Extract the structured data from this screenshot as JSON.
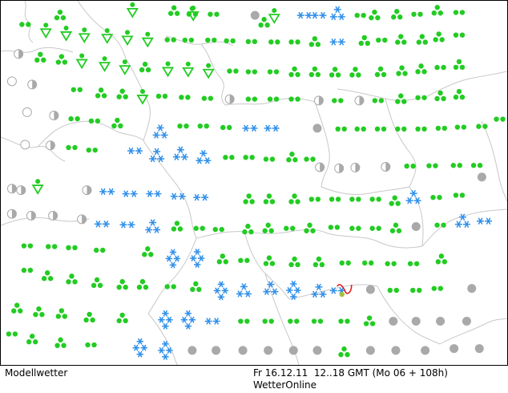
{
  "map": {
    "type": "weather-symbol-grid",
    "region": "Central Europe",
    "legend_symbols": {
      "rain": {
        "color": "#22cc22",
        "shape": "dots"
      },
      "snow": {
        "color": "#2f8fea",
        "shape": "asterisks"
      },
      "fog": {
        "color": "#a9a9a9",
        "shape": "grey-disc"
      },
      "clear": {
        "color": "#a9a9a9",
        "shape": "open-circle"
      },
      "partly": {
        "color": "#a9a9a9",
        "shape": "half-disc"
      },
      "thunder": {
        "color": "#e02020",
        "shape": "wavy"
      }
    },
    "symbols": [
      [
        "dots2",
        0.048,
        0.065
      ],
      [
        "shower",
        0.089,
        0.08
      ],
      [
        "shower",
        0.129,
        0.088
      ],
      [
        "shower",
        0.165,
        0.093
      ],
      [
        "dots3",
        0.117,
        0.04
      ],
      [
        "shower",
        0.26,
        0.024
      ],
      [
        "dots3",
        0.342,
        0.028
      ],
      [
        "dots3",
        0.378,
        0.03
      ],
      [
        "shower",
        0.38,
        0.033
      ],
      [
        "dots2",
        0.42,
        0.037
      ],
      [
        "fog",
        0.502,
        0.04
      ],
      [
        "shower",
        0.54,
        0.04
      ],
      [
        "dots3",
        0.52,
        0.06
      ],
      [
        "snow2",
        0.6,
        0.04
      ],
      [
        "snow2",
        0.628,
        0.04
      ],
      [
        "snow3",
        0.665,
        0.035
      ],
      [
        "dots2",
        0.71,
        0.04
      ],
      [
        "dots3",
        0.738,
        0.04
      ],
      [
        "dots3",
        0.782,
        0.038
      ],
      [
        "dots2",
        0.822,
        0.037
      ],
      [
        "dots3",
        0.862,
        0.027
      ],
      [
        "dots2",
        0.905,
        0.032
      ],
      [
        "shower",
        0.21,
        0.095
      ],
      [
        "shower",
        0.25,
        0.1
      ],
      [
        "shower",
        0.29,
        0.105
      ],
      [
        "dots2",
        0.335,
        0.107
      ],
      [
        "dots2",
        0.37,
        0.108
      ],
      [
        "dots2",
        0.415,
        0.108
      ],
      [
        "dots2",
        0.452,
        0.11
      ],
      [
        "dots2",
        0.495,
        0.112
      ],
      [
        "dots2",
        0.54,
        0.113
      ],
      [
        "dots2",
        0.58,
        0.113
      ],
      [
        "dots3",
        0.62,
        0.113
      ],
      [
        "snow2",
        0.665,
        0.113
      ],
      [
        "dots3",
        0.718,
        0.11
      ],
      [
        "dots2",
        0.752,
        0.108
      ],
      [
        "dots3",
        0.79,
        0.107
      ],
      [
        "dots3",
        0.832,
        0.107
      ],
      [
        "dots3",
        0.865,
        0.1
      ],
      [
        "dots2",
        0.905,
        0.094
      ],
      [
        "partly",
        0.035,
        0.146
      ],
      [
        "dots3",
        0.078,
        0.156
      ],
      [
        "dots3",
        0.12,
        0.162
      ],
      [
        "shower",
        0.16,
        0.164
      ],
      [
        "shower",
        0.205,
        0.172
      ],
      [
        "shower",
        0.245,
        0.181
      ],
      [
        "dots3",
        0.285,
        0.183
      ],
      [
        "shower",
        0.33,
        0.186
      ],
      [
        "shower",
        0.37,
        0.187
      ],
      [
        "shower",
        0.41,
        0.191
      ],
      [
        "dots2",
        0.458,
        0.193
      ],
      [
        "dots2",
        0.495,
        0.195
      ],
      [
        "dots2",
        0.538,
        0.195
      ],
      [
        "dots3",
        0.58,
        0.196
      ],
      [
        "dots3",
        0.62,
        0.196
      ],
      [
        "dots3",
        0.66,
        0.197
      ],
      [
        "dots3",
        0.7,
        0.197
      ],
      [
        "dots3",
        0.75,
        0.196
      ],
      [
        "dots3",
        0.792,
        0.193
      ],
      [
        "dots3",
        0.83,
        0.188
      ],
      [
        "dots2",
        0.868,
        0.183
      ],
      [
        "dots3",
        0.905,
        0.176
      ],
      [
        "clear",
        0.022,
        0.221
      ],
      [
        "partly",
        0.062,
        0.23
      ],
      [
        "dots2",
        0.15,
        0.244
      ],
      [
        "dots3",
        0.198,
        0.254
      ],
      [
        "dots3",
        0.24,
        0.257
      ],
      [
        "shower",
        0.28,
        0.262
      ],
      [
        "dots2",
        0.318,
        0.262
      ],
      [
        "dots2",
        0.363,
        0.265
      ],
      [
        "dots2",
        0.408,
        0.268
      ],
      [
        "partly",
        0.452,
        0.27
      ],
      [
        "dots2",
        0.495,
        0.27
      ],
      [
        "dots2",
        0.538,
        0.27
      ],
      [
        "dots2",
        0.58,
        0.27
      ],
      [
        "partly",
        0.628,
        0.274
      ],
      [
        "dots2",
        0.665,
        0.274
      ],
      [
        "partly",
        0.708,
        0.274
      ],
      [
        "dots2",
        0.745,
        0.274
      ],
      [
        "dots3",
        0.79,
        0.27
      ],
      [
        "dots2",
        0.83,
        0.266
      ],
      [
        "dots3",
        0.868,
        0.262
      ],
      [
        "dots3",
        0.905,
        0.258
      ],
      [
        "clear",
        0.052,
        0.306
      ],
      [
        "partly",
        0.105,
        0.315
      ],
      [
        "dots2",
        0.145,
        0.324
      ],
      [
        "dots2",
        0.185,
        0.33
      ],
      [
        "dots3",
        0.23,
        0.337
      ],
      [
        "snow3",
        0.315,
        0.36
      ],
      [
        "dots2",
        0.36,
        0.344
      ],
      [
        "dots2",
        0.4,
        0.344
      ],
      [
        "dots2",
        0.445,
        0.348
      ],
      [
        "snow2",
        0.492,
        0.35
      ],
      [
        "snow2",
        0.535,
        0.35
      ],
      [
        "fog",
        0.625,
        0.35
      ],
      [
        "dots2",
        0.672,
        0.352
      ],
      [
        "dots2",
        0.71,
        0.352
      ],
      [
        "dots2",
        0.75,
        0.352
      ],
      [
        "dots2",
        0.79,
        0.352
      ],
      [
        "dots2",
        0.83,
        0.352
      ],
      [
        "dots2",
        0.87,
        0.35
      ],
      [
        "dots2",
        0.908,
        0.347
      ],
      [
        "dots2",
        0.95,
        0.345
      ],
      [
        "dots2",
        0.985,
        0.325
      ],
      [
        "clear",
        0.048,
        0.395
      ],
      [
        "partly",
        0.098,
        0.397
      ],
      [
        "dots2",
        0.14,
        0.403
      ],
      [
        "dots2",
        0.18,
        0.41
      ],
      [
        "snow2",
        0.265,
        0.412
      ],
      [
        "snow3",
        0.308,
        0.425
      ],
      [
        "snow3",
        0.355,
        0.42
      ],
      [
        "snow3",
        0.4,
        0.43
      ],
      [
        "dots2",
        0.45,
        0.43
      ],
      [
        "dots2",
        0.49,
        0.43
      ],
      [
        "dots2",
        0.53,
        0.435
      ],
      [
        "dots3",
        0.575,
        0.43
      ],
      [
        "dots2",
        0.61,
        0.435
      ],
      [
        "partly",
        0.63,
        0.457
      ],
      [
        "partly",
        0.668,
        0.46
      ],
      [
        "partly",
        0.7,
        0.458
      ],
      [
        "partly",
        0.76,
        0.456
      ],
      [
        "dots2",
        0.808,
        0.454
      ],
      [
        "dots2",
        0.852,
        0.453
      ],
      [
        "dots2",
        0.9,
        0.452
      ],
      [
        "dots2",
        0.94,
        0.452
      ],
      [
        "shower",
        0.073,
        0.509
      ],
      [
        "partly",
        0.022,
        0.516
      ],
      [
        "partly",
        0.04,
        0.52
      ],
      [
        "partly",
        0.17,
        0.52
      ],
      [
        "snow2",
        0.21,
        0.524
      ],
      [
        "snow2",
        0.255,
        0.53
      ],
      [
        "snow2",
        0.302,
        0.53
      ],
      [
        "snow2",
        0.35,
        0.537
      ],
      [
        "snow2",
        0.395,
        0.54
      ],
      [
        "dots3",
        0.49,
        0.545
      ],
      [
        "dots3",
        0.53,
        0.545
      ],
      [
        "dots3",
        0.58,
        0.545
      ],
      [
        "dots2",
        0.62,
        0.545
      ],
      [
        "dots2",
        0.66,
        0.545
      ],
      [
        "dots2",
        0.7,
        0.545
      ],
      [
        "dots2",
        0.74,
        0.545
      ],
      [
        "dots3",
        0.778,
        0.55
      ],
      [
        "snow3",
        0.815,
        0.54
      ],
      [
        "dots2",
        0.86,
        0.54
      ],
      [
        "dots2",
        0.905,
        0.534
      ],
      [
        "fog",
        0.95,
        0.484
      ],
      [
        "partly",
        0.022,
        0.585
      ],
      [
        "partly",
        0.06,
        0.59
      ],
      [
        "partly",
        0.103,
        0.59
      ],
      [
        "partly",
        0.16,
        0.6
      ],
      [
        "snow2",
        0.2,
        0.613
      ],
      [
        "snow2",
        0.25,
        0.615
      ],
      [
        "snow3",
        0.3,
        0.62
      ],
      [
        "dots3",
        0.348,
        0.62
      ],
      [
        "dots2",
        0.392,
        0.625
      ],
      [
        "dots2",
        0.43,
        0.628
      ],
      [
        "dots3",
        0.488,
        0.628
      ],
      [
        "dots3",
        0.528,
        0.625
      ],
      [
        "dots2",
        0.57,
        0.625
      ],
      [
        "dots3",
        0.61,
        0.625
      ],
      [
        "dots2",
        0.658,
        0.622
      ],
      [
        "dots2",
        0.7,
        0.625
      ],
      [
        "dots2",
        0.74,
        0.625
      ],
      [
        "dots3",
        0.78,
        0.625
      ],
      [
        "fog",
        0.82,
        0.62
      ],
      [
        "dots2",
        0.868,
        0.616
      ],
      [
        "snow3",
        0.912,
        0.605
      ],
      [
        "snow2",
        0.955,
        0.605
      ],
      [
        "dots2",
        0.052,
        0.673
      ],
      [
        "dots2",
        0.1,
        0.675
      ],
      [
        "dots2",
        0.14,
        0.678
      ],
      [
        "dots2",
        0.195,
        0.685
      ],
      [
        "dots3",
        0.29,
        0.69
      ],
      [
        "snow4",
        0.34,
        0.708
      ],
      [
        "snow4",
        0.388,
        0.707
      ],
      [
        "dots3",
        0.438,
        0.71
      ],
      [
        "dots2",
        0.48,
        0.713
      ],
      [
        "dots3",
        0.53,
        0.715
      ],
      [
        "dots3",
        0.58,
        0.718
      ],
      [
        "dots3",
        0.628,
        0.718
      ],
      [
        "dots2",
        0.68,
        0.72
      ],
      [
        "dots2",
        0.725,
        0.72
      ],
      [
        "dots2",
        0.77,
        0.722
      ],
      [
        "dots2",
        0.815,
        0.722
      ],
      [
        "dots3",
        0.87,
        0.71
      ],
      [
        "dots2",
        0.052,
        0.74
      ],
      [
        "dots3",
        0.092,
        0.756
      ],
      [
        "dots3",
        0.14,
        0.765
      ],
      [
        "dots3",
        0.19,
        0.775
      ],
      [
        "dots3",
        0.24,
        0.78
      ],
      [
        "dots3",
        0.28,
        0.78
      ],
      [
        "dots2",
        0.335,
        0.785
      ],
      [
        "dots3",
        0.385,
        0.786
      ],
      [
        "snow4",
        0.435,
        0.796
      ],
      [
        "snow3",
        0.48,
        0.796
      ],
      [
        "snow3",
        0.533,
        0.79
      ],
      [
        "snow4",
        0.578,
        0.795
      ],
      [
        "snow3",
        0.628,
        0.797
      ],
      [
        "snow2",
        0.665,
        0.796
      ],
      [
        "thunder",
        0.68,
        0.793
      ],
      [
        "fog",
        0.73,
        0.793
      ],
      [
        "dots2",
        0.775,
        0.795
      ],
      [
        "dots2",
        0.82,
        0.795
      ],
      [
        "dots2",
        0.862,
        0.79
      ],
      [
        "fog",
        0.93,
        0.79
      ],
      [
        "dots3",
        0.032,
        0.845
      ],
      [
        "dots3",
        0.075,
        0.855
      ],
      [
        "dots3",
        0.12,
        0.86
      ],
      [
        "dots3",
        0.175,
        0.87
      ],
      [
        "dots3",
        0.24,
        0.872
      ],
      [
        "snow4",
        0.325,
        0.876
      ],
      [
        "snow4",
        0.37,
        0.876
      ],
      [
        "snow2",
        0.418,
        0.88
      ],
      [
        "dots2",
        0.48,
        0.88
      ],
      [
        "dots2",
        0.528,
        0.88
      ],
      [
        "dots2",
        0.578,
        0.88
      ],
      [
        "dots2",
        0.625,
        0.88
      ],
      [
        "dots2",
        0.678,
        0.88
      ],
      [
        "dots3",
        0.728,
        0.88
      ],
      [
        "fog",
        0.775,
        0.88
      ],
      [
        "fog",
        0.82,
        0.88
      ],
      [
        "fog",
        0.868,
        0.88
      ],
      [
        "fog",
        0.92,
        0.88
      ],
      [
        "dots2",
        0.022,
        0.915
      ],
      [
        "dots3",
        0.062,
        0.93
      ],
      [
        "dots3",
        0.118,
        0.94
      ],
      [
        "dots2",
        0.178,
        0.945
      ],
      [
        "snow4",
        0.275,
        0.953
      ],
      [
        "snow4",
        0.325,
        0.96
      ],
      [
        "fog",
        0.378,
        0.96
      ],
      [
        "fog",
        0.425,
        0.96
      ],
      [
        "fog",
        0.478,
        0.96
      ],
      [
        "fog",
        0.528,
        0.96
      ],
      [
        "fog",
        0.578,
        0.96
      ],
      [
        "fog",
        0.625,
        0.96
      ],
      [
        "dots3",
        0.678,
        0.965
      ],
      [
        "fog",
        0.73,
        0.96
      ],
      [
        "fog",
        0.78,
        0.96
      ],
      [
        "fog",
        0.838,
        0.96
      ],
      [
        "fog",
        0.895,
        0.955
      ],
      [
        "fog",
        0.945,
        0.955
      ]
    ]
  },
  "footer": {
    "product": "Modellwetter",
    "datetime": "Fr 16.12.11  12..18 GMT (Mo 06 + 108h)",
    "source": "WetterOnline"
  }
}
